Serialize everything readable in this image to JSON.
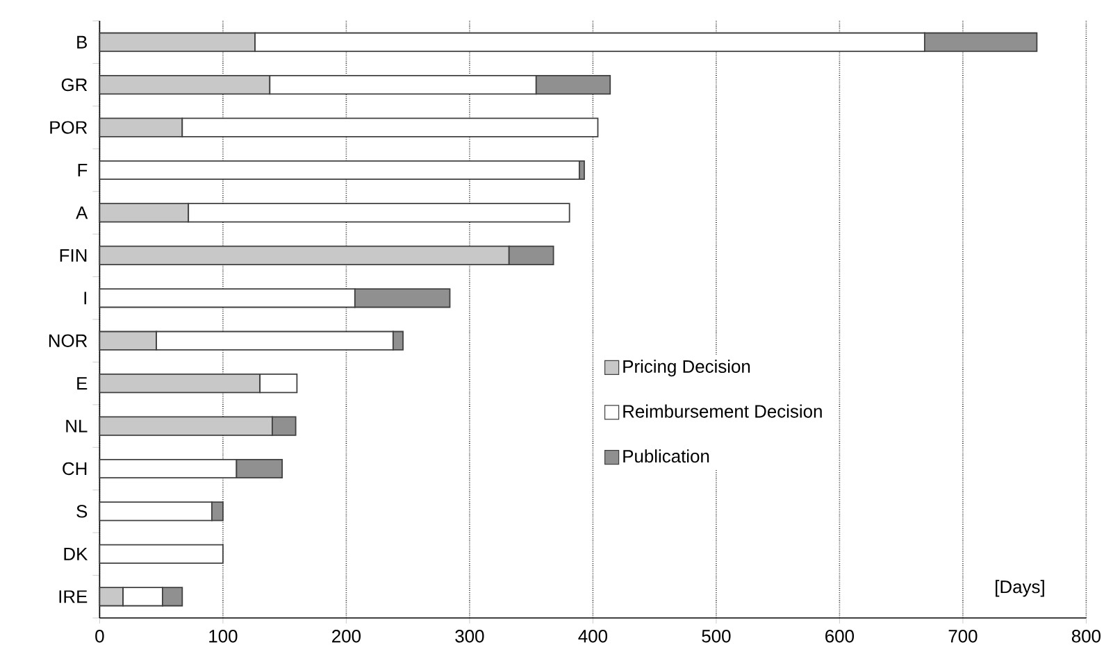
{
  "chart_data": {
    "type": "bar",
    "orientation": "horizontal",
    "stacked": true,
    "categories": [
      "B",
      "GR",
      "POR",
      "F",
      "A",
      "FIN",
      "I",
      "NOR",
      "E",
      "NL",
      "CH",
      "S",
      "DK",
      "IRE"
    ],
    "series": [
      {
        "name": "Pricing Decision",
        "color": "#c8c8c8",
        "values": [
          126,
          138,
          67,
          null,
          72,
          332,
          null,
          46,
          130,
          140,
          null,
          null,
          null,
          19
        ]
      },
      {
        "name": "Reimbursement Decision",
        "color": "#ffffff",
        "values": [
          543,
          216,
          337,
          389,
          309,
          null,
          207,
          192,
          30,
          null,
          111,
          91,
          100,
          32
        ]
      },
      {
        "name": "Publication",
        "color": "#909090",
        "values": [
          91,
          60,
          null,
          4,
          null,
          36,
          77,
          8,
          null,
          19,
          37,
          9,
          null,
          16
        ]
      }
    ],
    "xlim": [
      0,
      800
    ],
    "xticks": [
      0,
      100,
      200,
      300,
      400,
      500,
      600,
      700,
      800
    ],
    "xlabel": "[Days]",
    "grid": "x",
    "legend": "right"
  }
}
